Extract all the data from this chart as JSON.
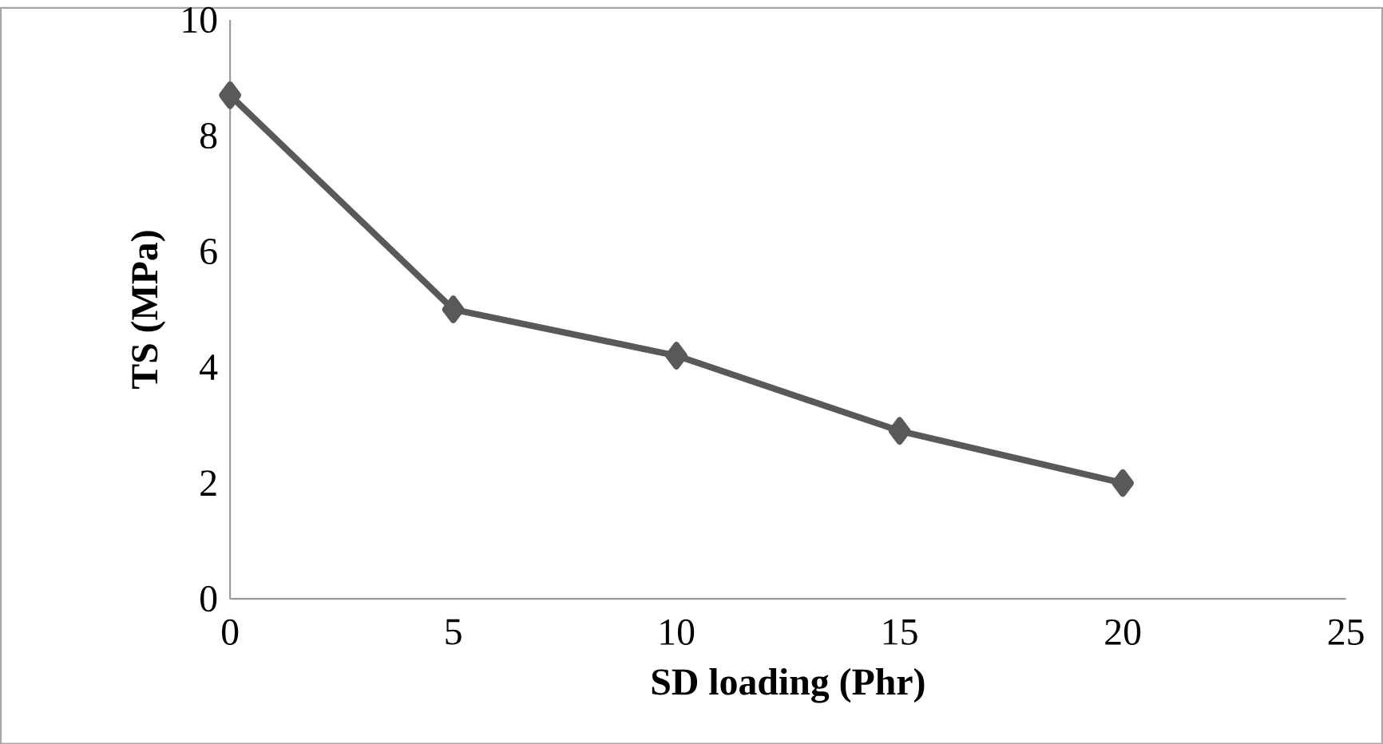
{
  "chart_data": {
    "type": "line",
    "xlabel": "SD loading (Phr)",
    "ylabel": "TS (MPa)",
    "x": [
      0,
      5,
      10,
      15,
      20
    ],
    "series": [
      {
        "color": "#595959",
        "values": [
          8.7,
          5.0,
          4.2,
          2.9,
          2.0
        ]
      }
    ],
    "xlim": [
      0,
      25
    ],
    "xticks": [
      0,
      5,
      10,
      15,
      20,
      25
    ],
    "ylim": [
      0,
      10
    ],
    "yticks": [
      0,
      2,
      4,
      6,
      8,
      10
    ],
    "marker": "diamond",
    "grid": false
  }
}
